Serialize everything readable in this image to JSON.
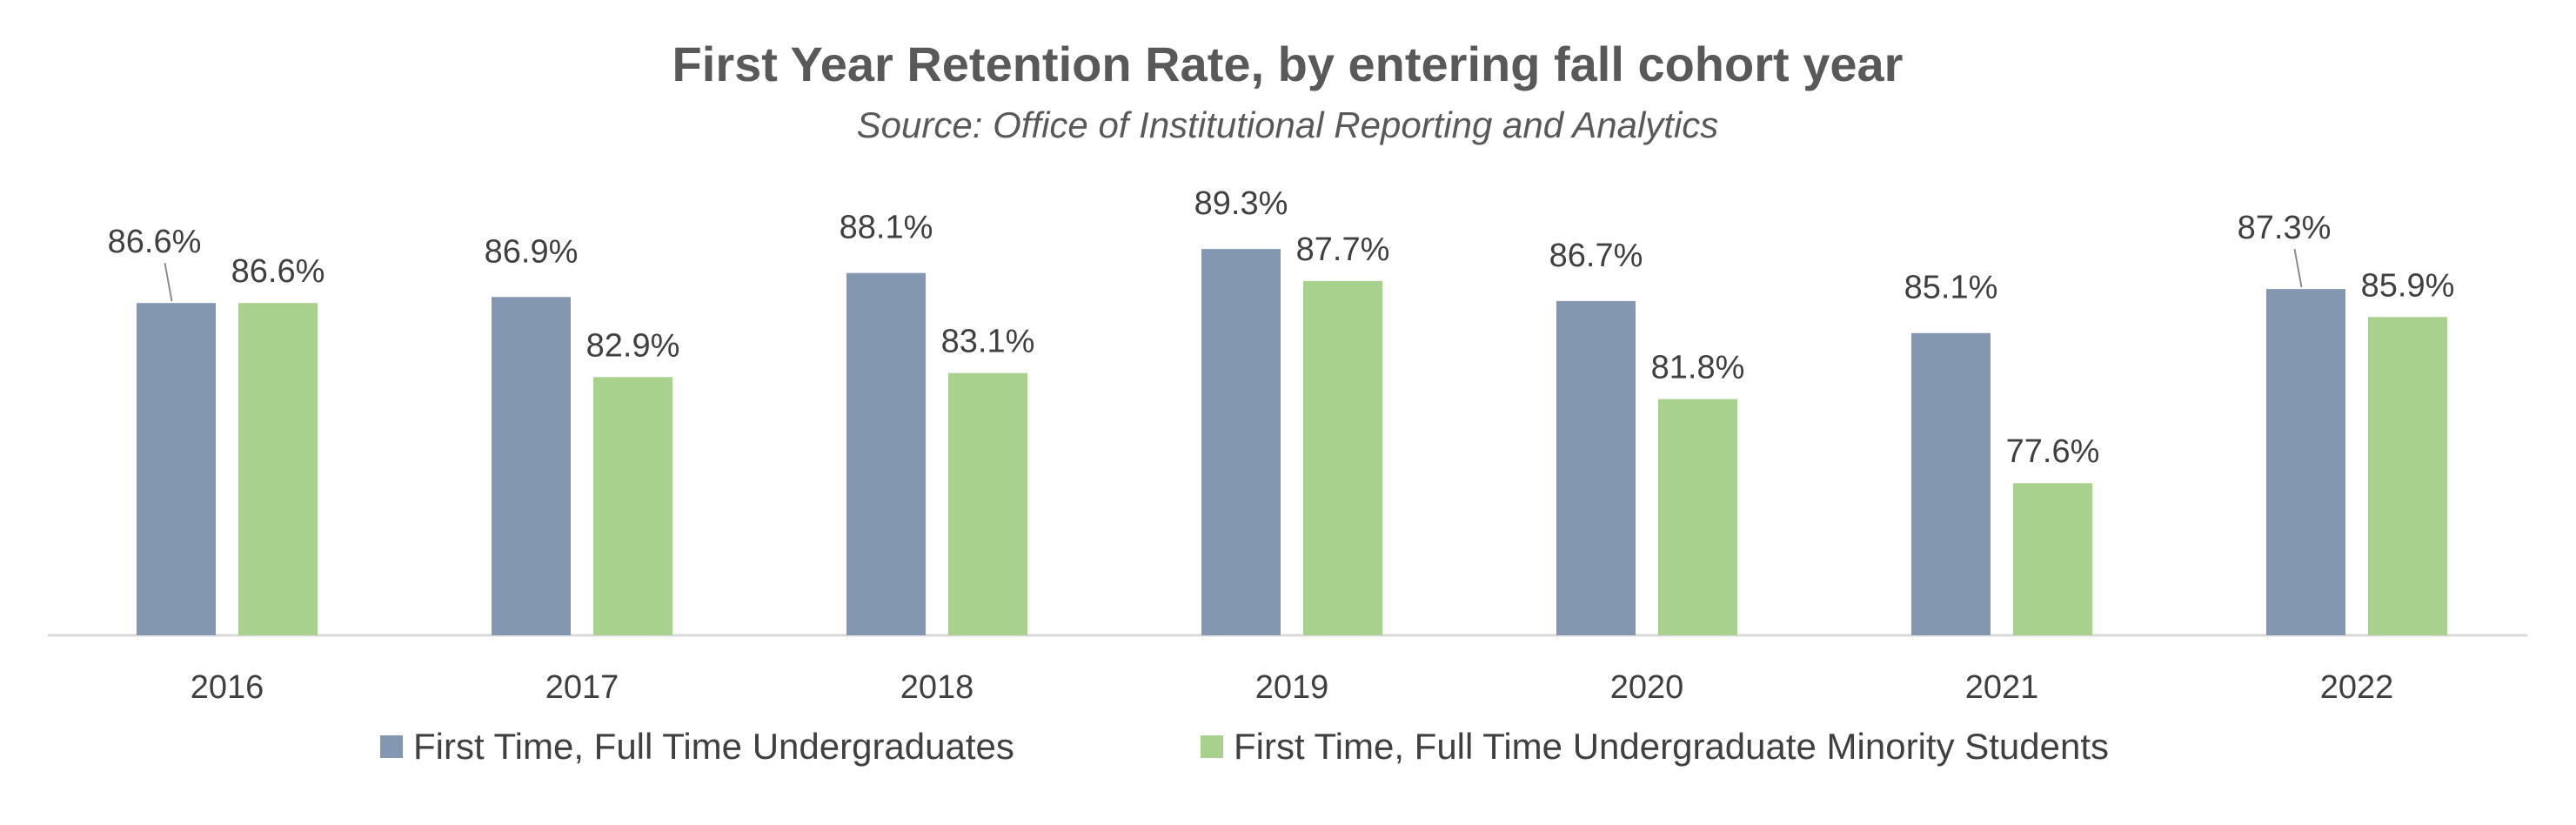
{
  "chart_data": {
    "type": "bar",
    "title": "First Year Retention Rate, by entering fall cohort year",
    "subtitle": "Source: Office of Institutional Reporting and Analytics",
    "categories": [
      "2016",
      "2017",
      "2018",
      "2019",
      "2020",
      "2021",
      "2022"
    ],
    "series": [
      {
        "name": "First Time, Full Time Undergraduates",
        "color": "#8497B0",
        "values": [
          86.6,
          86.9,
          88.1,
          89.3,
          86.7,
          85.1,
          87.3
        ],
        "labels": [
          "86.6%",
          "86.9%",
          "88.1%",
          "89.3%",
          "86.7%",
          "85.1%",
          "87.3%"
        ]
      },
      {
        "name": "First Time, Full Time Undergraduate Minority Students",
        "color": "#A9D18E",
        "values": [
          86.6,
          82.9,
          83.1,
          87.7,
          81.8,
          77.6,
          85.9
        ],
        "labels": [
          "86.6%",
          "82.9%",
          "83.1%",
          "87.7%",
          "81.8%",
          "77.6%",
          "85.9%"
        ]
      }
    ],
    "xlabel": "",
    "ylabel": "",
    "ylim": [
      70,
      90
    ],
    "grid": false,
    "legend_position": "bottom",
    "axis_color": "#D9D9D9"
  }
}
